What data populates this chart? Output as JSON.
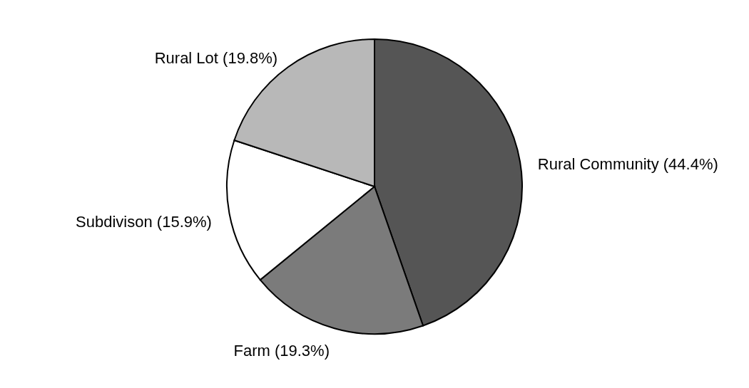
{
  "chart_data": {
    "type": "pie",
    "categories": [
      "Rural Community",
      "Farm",
      "Subdivison",
      "Rural Lot"
    ],
    "values": [
      44.4,
      19.3,
      15.9,
      19.8
    ],
    "value_labels": [
      "(44.4%)",
      "(19.3%)",
      "(15.9%)",
      "(19.8%)"
    ],
    "colors": [
      "#555555",
      "#7b7b7b",
      "#ffffff",
      "#b8b8b8"
    ]
  }
}
